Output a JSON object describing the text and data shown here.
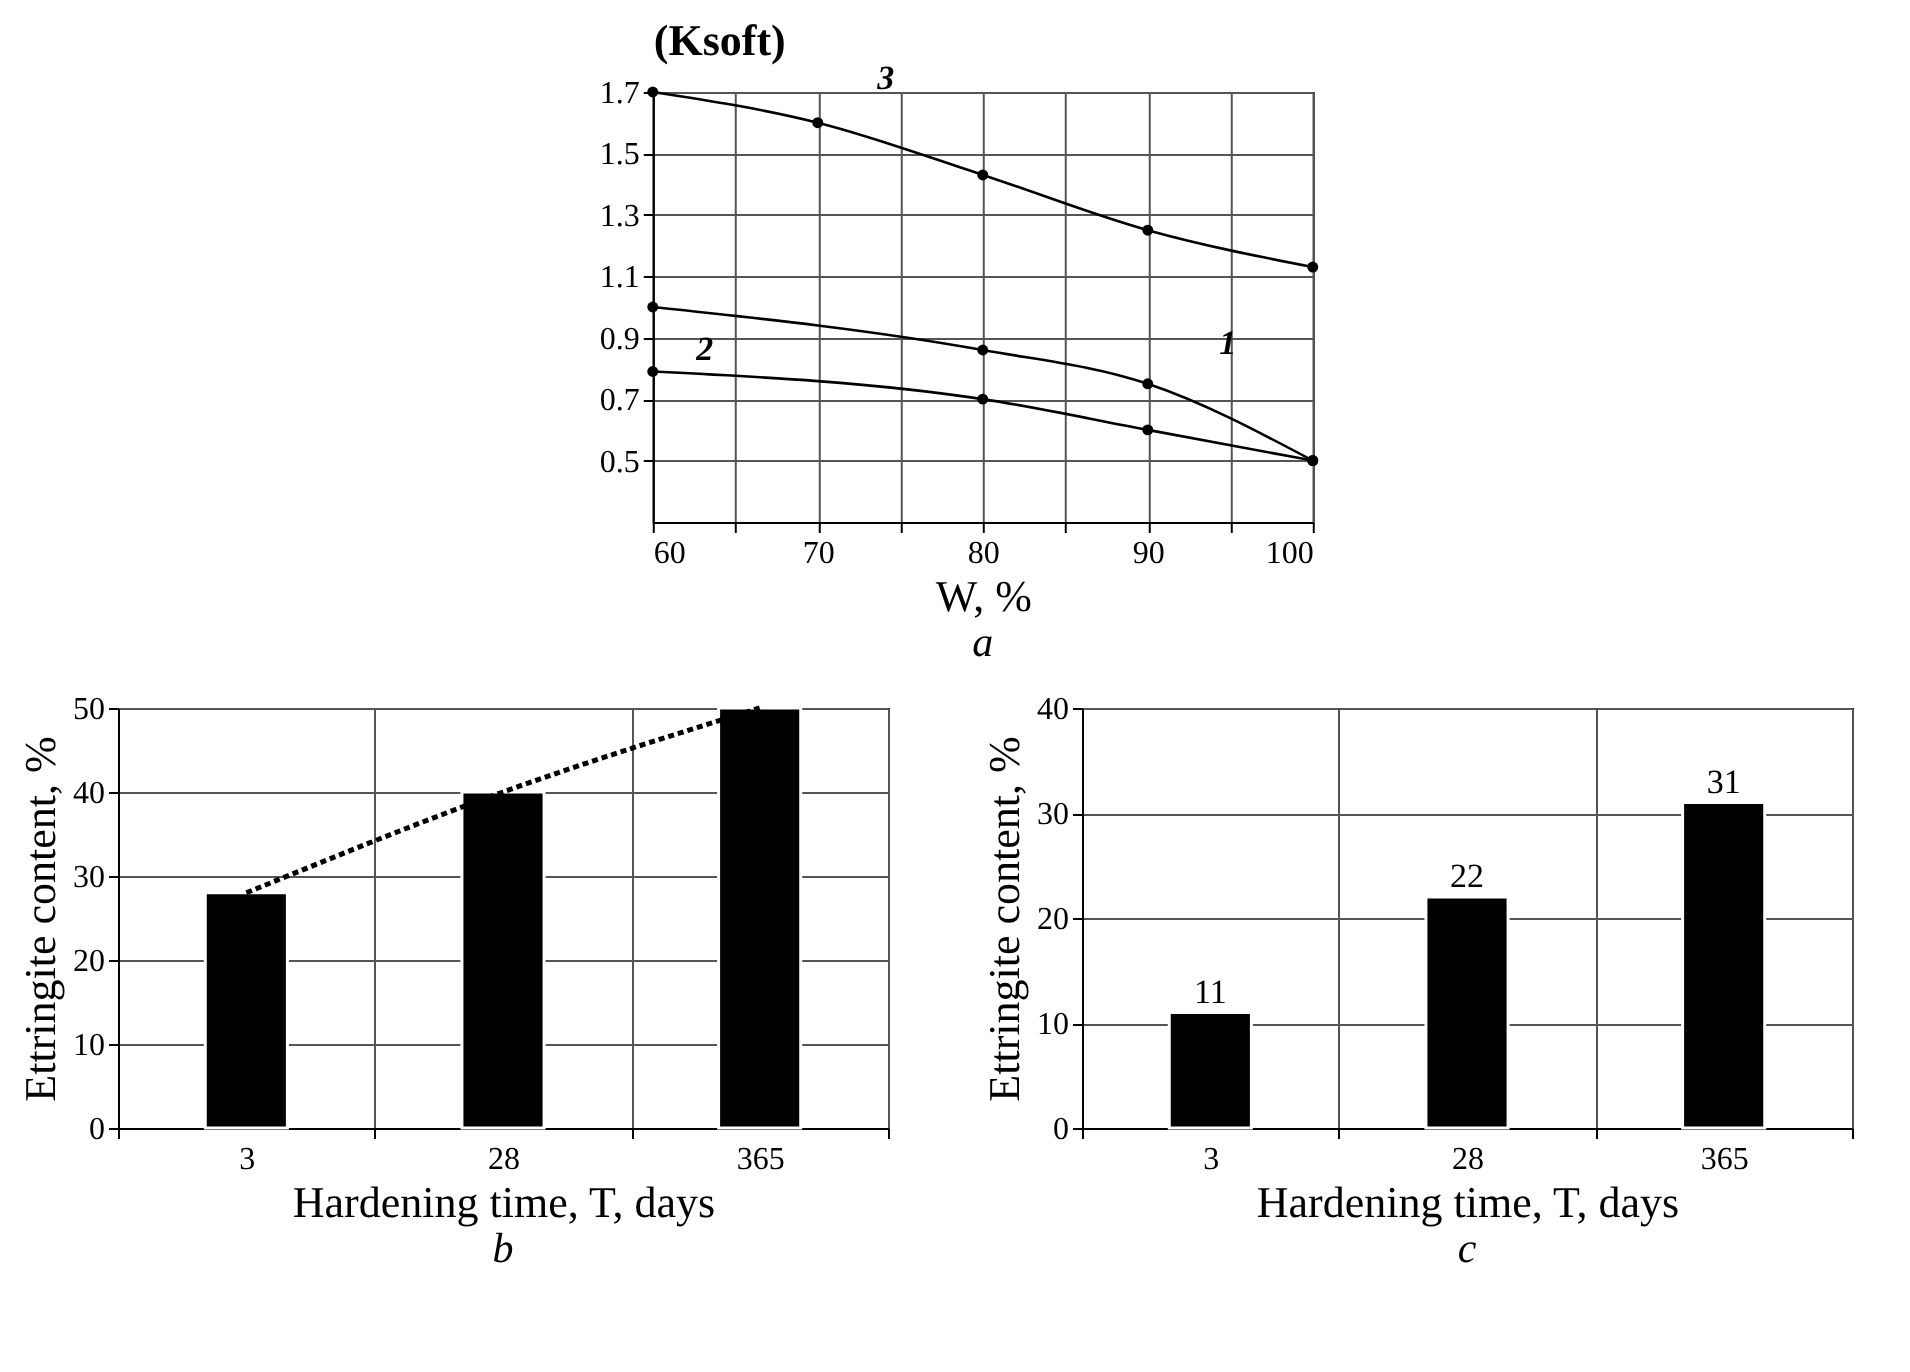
{
  "chart_data": [
    {
      "type": "line",
      "xlabel": "W, %",
      "ylabel": "(Ksoft)",
      "annotations": [
        "a"
      ],
      "x": [
        60,
        70,
        80,
        90,
        100
      ],
      "xlim": [
        60,
        100
      ],
      "xticks": [
        60,
        {
          "value": 65,
          "label": null
        },
        70,
        {
          "value": 75,
          "label": null
        },
        80,
        {
          "value": 85,
          "label": null
        },
        90,
        {
          "value": 95,
          "label": null
        },
        100
      ],
      "ylim": [
        0.3,
        1.7
      ],
      "yticks": [
        0.5,
        0.7,
        0.9,
        1.1,
        1.3,
        1.5,
        1.7
      ],
      "grid": true,
      "marker": "circle",
      "series": [
        {
          "name": "3",
          "color": "#000000",
          "values": [
            1.7,
            1.6,
            1.43,
            1.25,
            1.13
          ]
        },
        {
          "name": "1",
          "color": "#000000",
          "values": [
            1.0,
            null,
            0.86,
            0.75,
            0.5
          ]
        },
        {
          "name": "2",
          "color": "#000000",
          "values": [
            0.79,
            null,
            0.7,
            0.6,
            0.5
          ]
        }
      ]
    },
    {
      "type": "bar",
      "xlabel": "Hardening time, T, days",
      "ylabel": "Ettringite content, %",
      "annotations": [
        "b"
      ],
      "categories": [
        "3",
        "28",
        "365"
      ],
      "ylim": [
        0,
        50
      ],
      "yticks": [
        0,
        10,
        20,
        30,
        40,
        50
      ],
      "grid": true,
      "series": [
        {
          "type": "bar",
          "color": "#000000",
          "values": [
            28,
            40,
            50
          ]
        },
        {
          "type": "line",
          "color": "#000000",
          "line_style": "dotted",
          "values": [
            28,
            40,
            50
          ]
        }
      ]
    },
    {
      "type": "bar",
      "xlabel": "Hardening time, T, days",
      "ylabel": "Ettringite content, %",
      "annotations": [
        "c"
      ],
      "categories": [
        "3",
        "28",
        "365"
      ],
      "ylim": [
        0,
        40
      ],
      "yticks": [
        0,
        10,
        20,
        30,
        40
      ],
      "grid": true,
      "data_labels": true,
      "series": [
        {
          "type": "bar",
          "color": "#000000",
          "values": [
            11,
            22,
            31
          ]
        }
      ]
    }
  ]
}
